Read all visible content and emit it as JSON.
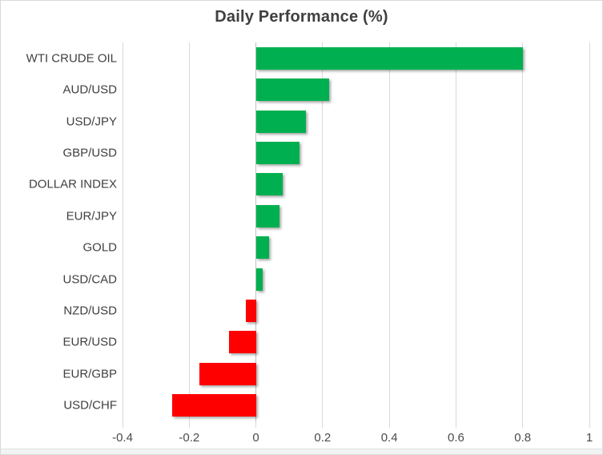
{
  "chart_data": {
    "type": "bar",
    "orientation": "horizontal",
    "title": "Daily Performance (%)",
    "categories": [
      "WTI CRUDE OIL",
      "AUD/USD",
      "USD/JPY",
      "GBP/USD",
      "DOLLAR INDEX",
      "EUR/JPY",
      "GOLD",
      "USD/CAD",
      "NZD/USD",
      "EUR/USD",
      "EUR/GBP",
      "USD/CHF"
    ],
    "values": [
      0.8,
      0.22,
      0.15,
      0.13,
      0.08,
      0.07,
      0.04,
      0.02,
      -0.03,
      -0.08,
      -0.17,
      -0.25
    ],
    "xlabel": "",
    "ylabel": "",
    "xlim": [
      -0.4,
      1.0
    ],
    "xticks": [
      -0.4,
      -0.2,
      0,
      0.2,
      0.4,
      0.6,
      0.8,
      1
    ],
    "xtick_labels": [
      "-0.4",
      "-0.2",
      "0",
      "0.2",
      "0.4",
      "0.6",
      "0.8",
      "1"
    ],
    "grid": true,
    "legend": false,
    "colors": {
      "positive": "#00B050",
      "negative": "#FF0000",
      "gridline": "#D9D9D9",
      "zero_line": "#BFBFBF",
      "title_text": "#404040",
      "label_text": "#404040",
      "tick_text": "#4A4A4A"
    }
  }
}
